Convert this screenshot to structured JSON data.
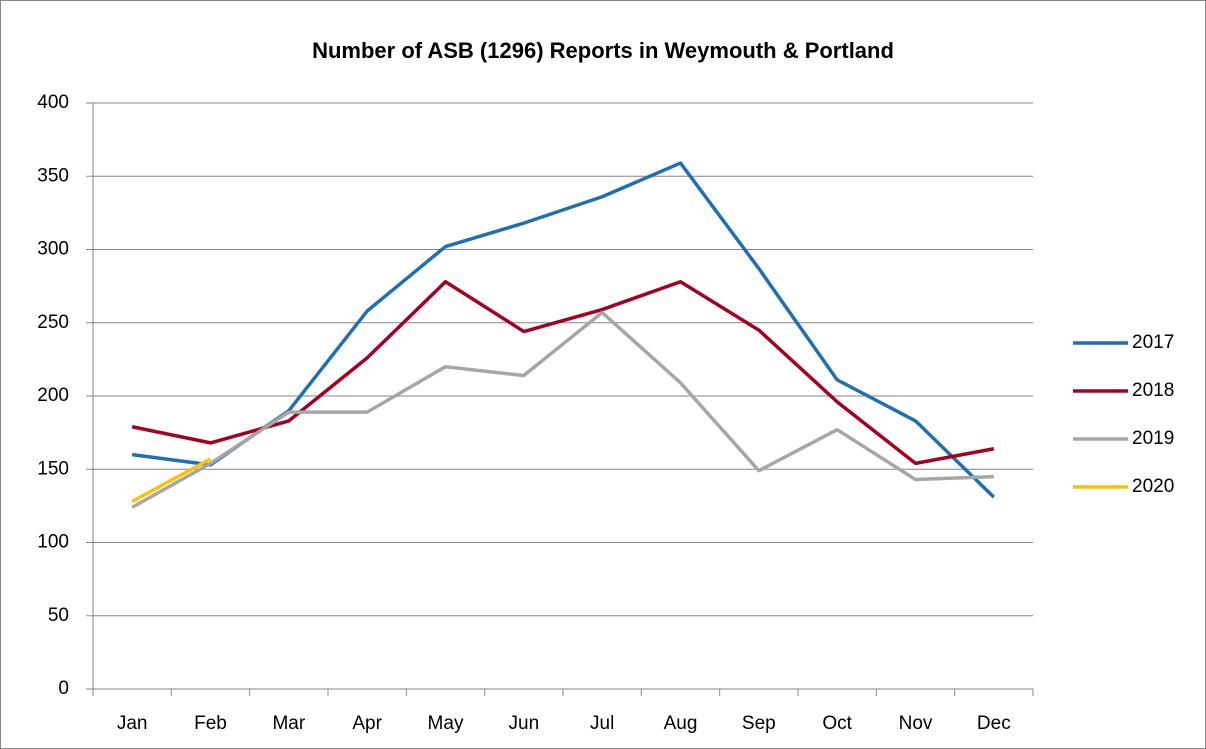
{
  "chart_data": {
    "type": "line",
    "title": "Number of ASB (1296) Reports in Weymouth & Portland",
    "categories": [
      "Jan",
      "Feb",
      "Mar",
      "Apr",
      "May",
      "Jun",
      "Jul",
      "Aug",
      "Sep",
      "Oct",
      "Nov",
      "Dec"
    ],
    "series": [
      {
        "name": "2017",
        "color": "#1f6fb5",
        "values": [
          160,
          153,
          190,
          258,
          302,
          318,
          336,
          359,
          287,
          211,
          183,
          131
        ]
      },
      {
        "name": "2018",
        "color": "#a50021",
        "values": [
          179,
          168,
          183,
          226,
          278,
          244,
          259,
          278,
          245,
          196,
          154,
          164
        ]
      },
      {
        "name": "2019",
        "color": "#a6a6a6",
        "values": [
          124,
          154,
          189,
          189,
          220,
          214,
          257,
          209,
          149,
          177,
          143,
          145
        ]
      },
      {
        "name": "2020",
        "color": "#ffc000",
        "values": [
          128,
          157,
          null,
          null,
          null,
          null,
          null,
          null,
          null,
          null,
          null,
          null
        ]
      }
    ],
    "ylim": [
      0,
      400
    ],
    "yticks": [
      0,
      50,
      100,
      150,
      200,
      250,
      300,
      350,
      400
    ],
    "grid": true,
    "legend": "right"
  }
}
